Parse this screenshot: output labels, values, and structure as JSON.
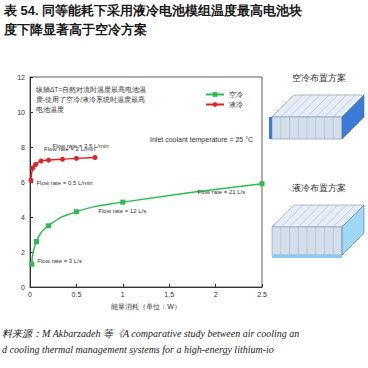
{
  "title": [
    "表 54. 同等能耗下采用液冷电池模组温度最高电池块",
    "度下降显著高于空冷方案"
  ],
  "source": [
    "料来源：M Akbarzadeh 等《A comparative study between air cooling an",
    "d cooling thermal management systems for a high-energy lithium-io"
  ],
  "diagrams": [
    {
      "title": "空冷布置方案"
    },
    {
      "title": "液冷布置方案"
    }
  ],
  "chart_data": {
    "type": "line",
    "x_label": "能量消耗（单位：W）",
    "xlim": [
      0,
      2.5
    ],
    "xticks": [
      0,
      0.5,
      1,
      1.5,
      2,
      2.5
    ],
    "ylim": [
      0,
      12
    ],
    "yticks": [
      0,
      2,
      4,
      6,
      8,
      10,
      12
    ],
    "grid": false,
    "legend": "upper right",
    "note": [
      "纵轴ΔT=自然对流时温度最高电池温",
      "度-使用了空冷/液冷系统时温度最高",
      "电池温度"
    ],
    "inlet_text": "Inlet coolant temperature = 25 °C",
    "series": [
      {
        "name": "空冷",
        "color": "#2dbd4e",
        "marker": "rect",
        "x": [
          0.02,
          0.07,
          0.2,
          0.5,
          1.0,
          2.5
        ],
        "values": [
          1.3,
          2.6,
          3.5,
          4.3,
          4.85,
          5.9
        ]
      },
      {
        "name": "液冷",
        "color": "#e02424",
        "marker": "circle",
        "x": [
          0.01,
          0.03,
          0.06,
          0.12,
          0.2,
          0.35,
          0.5,
          0.7
        ],
        "values": [
          6.1,
          6.8,
          7.0,
          7.2,
          7.25,
          7.3,
          7.35,
          7.4
        ]
      }
    ],
    "annotations": [
      {
        "text": "Flow rate = 3 L/s",
        "series": "空冷",
        "x": 0.02,
        "y": 1.3
      },
      {
        "text": "Flow rate = 12 L/s",
        "series": "空冷",
        "x": 1.0,
        "y": 4.85
      },
      {
        "text": "Flow rate = 21 L/s",
        "series": "空冷",
        "x": 2.5,
        "y": 5.9
      },
      {
        "text": "Flow rate = 0.5 L/min",
        "series": "液冷",
        "x": 0.01,
        "y": 6.1
      },
      {
        "text": "Flow rate = 2 L/min",
        "series": "液冷",
        "x": 0.2,
        "y": 7.25
      },
      {
        "text": "Flow rate = 3.5 L/min",
        "series": "液冷",
        "x": 0.7,
        "y": 7.4
      }
    ]
  }
}
